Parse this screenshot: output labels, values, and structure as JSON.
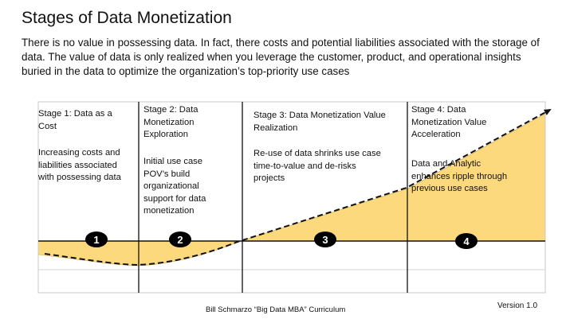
{
  "header": {
    "title": "Stages of Data Monetization",
    "intro": "There is no value in possessing data. In fact, there costs and potential liabilities associated with the storage of data. The value of data is only realized when you leverage the customer, product, and operational insights buried in the data to optimize the organization’s top-priority use cases"
  },
  "stages": [
    {
      "number": "1",
      "title": "Stage 1: Data as a Cost",
      "description": "Increasing costs and liabilities associated with possessing data"
    },
    {
      "number": "2",
      "title": "Stage 2: Data Monetization Exploration",
      "description": "Initial use case POV’s build organizational support for data monetization"
    },
    {
      "number": "3",
      "title": "Stage 3: Data Monetization Value Realization",
      "description": "Re-use of data shrinks use case time-to-value and de-risks projects"
    },
    {
      "number": "4",
      "title": "Stage 4: Data Monetization Value Acceleration",
      "description": "Data and Analytic enhances ripple through previous use cases"
    }
  ],
  "footer": {
    "credit": "Bill Schmarzo “Big Data MBA” Curriculum",
    "version": "Version 1.0"
  },
  "colors": {
    "fill": "#FDD97E",
    "line": "#111111",
    "badge": "#000000",
    "badge_text": "#ffffff"
  }
}
